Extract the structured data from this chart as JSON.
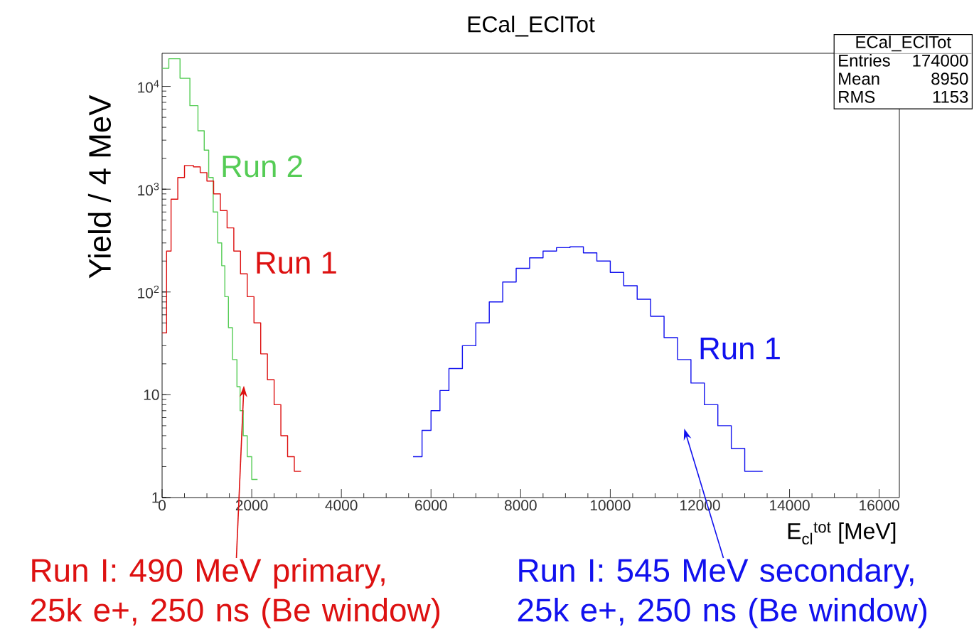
{
  "chart_data": [
    {
      "type": "step",
      "title": "ECal_EClTot",
      "xlabel": "E$_{cl}$$^{tot}$ [MeV]",
      "ylabel": "Yield / 4 MeV",
      "xlim": [
        0,
        16450
      ],
      "ylim": [
        1,
        21000
      ],
      "log": "y",
      "xticks": [
        0,
        2000,
        4000,
        6000,
        8000,
        10000,
        12000,
        14000,
        16000
      ],
      "yticks": [
        1,
        10,
        {
          "value": 100,
          "label": "10$^{2}$"
        },
        {
          "value": 1000,
          "label": "10$^{3}$"
        },
        {
          "value": 10000,
          "label": "10$^{4}$"
        }
      ],
      "series": [
        {
          "name": "Run 2",
          "color": "#55cc55",
          "x": [
            0,
            150,
            400,
            620,
            800,
            940,
            1040,
            1140,
            1240,
            1330,
            1400,
            1480,
            1570,
            1670,
            1740,
            1810,
            1900,
            2000,
            2130
          ],
          "values": [
            15000,
            18600,
            12000,
            6500,
            3700,
            2400,
            1300,
            600,
            300,
            180,
            90,
            45,
            22,
            12,
            7,
            4,
            2.5,
            1.5,
            1.5
          ]
        },
        {
          "name": "Run 1",
          "color": "#dd1111",
          "x": [
            0,
            100,
            200,
            350,
            500,
            700,
            850,
            1000,
            1150,
            1300,
            1450,
            1600,
            1750,
            1900,
            2050,
            2200,
            2350,
            2500,
            2650,
            2800,
            2950,
            3100
          ],
          "values": [
            40,
            250,
            800,
            1300,
            1700,
            1650,
            1450,
            1200,
            900,
            620,
            420,
            250,
            150,
            90,
            50,
            25,
            14,
            8,
            4,
            2.5,
            1.8,
            1.8
          ]
        },
        {
          "name": "Run 1",
          "color": "#1111ee",
          "x": [
            5600,
            5800,
            6000,
            6200,
            6400,
            6700,
            7000,
            7300,
            7600,
            7900,
            8200,
            8500,
            8800,
            9100,
            9400,
            9700,
            10000,
            10300,
            10600,
            10900,
            11200,
            11500,
            11800,
            12100,
            12400,
            12700,
            13000,
            13400
          ],
          "values": [
            2.5,
            4.5,
            7,
            11,
            18,
            30,
            50,
            80,
            125,
            170,
            215,
            250,
            270,
            275,
            240,
            200,
            155,
            115,
            85,
            58,
            36,
            22,
            13,
            8,
            5,
            3,
            1.8,
            1.8
          ]
        }
      ],
      "annotations": [
        "Run I: 490 MeV primary, 25k e+, 250 ns (Be window)",
        "Run I: 545 MeV secondary, 25k e+, 250 ns (Be window)"
      ]
    },
    {
      "type": "other",
      "title": "ECal_EClTot",
      "annotations": [
        "Entries",
        "174000",
        "Mean",
        "8950",
        "RMS",
        "1153"
      ]
    }
  ]
}
